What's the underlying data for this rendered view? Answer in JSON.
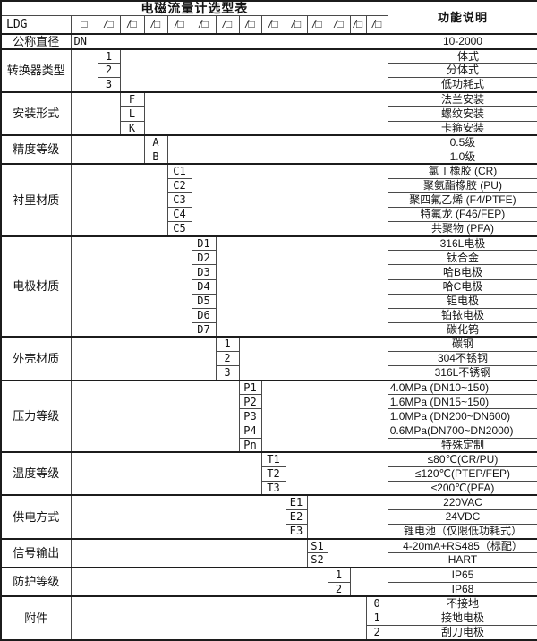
{
  "title": "电磁流量计选型表",
  "desc_header": "功能说明",
  "model_row": {
    "model": "LDG",
    "first_box": "□",
    "box": "/□",
    "box_count": 13
  },
  "dn_row": {
    "label": "公称直径",
    "code": "DN",
    "desc": "10-2000"
  },
  "total_code_columns": 13,
  "sections": [
    {
      "label": "转换器类型",
      "col": 1,
      "options": [
        {
          "code": "1",
          "desc": "一体式"
        },
        {
          "code": "2",
          "desc": "分体式"
        },
        {
          "code": "3",
          "desc": "低功耗式"
        }
      ]
    },
    {
      "label": "安装形式",
      "col": 2,
      "options": [
        {
          "code": "F",
          "desc": "法兰安装"
        },
        {
          "code": "L",
          "desc": "螺纹安装"
        },
        {
          "code": "K",
          "desc": "卡箍安装"
        }
      ]
    },
    {
      "label": "精度等级",
      "col": 3,
      "options": [
        {
          "code": "A",
          "desc": "0.5级"
        },
        {
          "code": "B",
          "desc": "1.0级"
        }
      ]
    },
    {
      "label": "衬里材质",
      "col": 4,
      "options": [
        {
          "code": "C1",
          "desc": "氯丁橡胶 (CR)"
        },
        {
          "code": "C2",
          "desc": "聚氨酯橡胶 (PU)"
        },
        {
          "code": "C3",
          "desc": "聚四氟乙烯 (F4/PTFE)"
        },
        {
          "code": "C4",
          "desc": "特氟龙 (F46/FEP)"
        },
        {
          "code": "C5",
          "desc": "共聚物 (PFA)"
        }
      ]
    },
    {
      "label": "电极材质",
      "col": 5,
      "options": [
        {
          "code": "D1",
          "desc": "316L电极"
        },
        {
          "code": "D2",
          "desc": "钛合金"
        },
        {
          "code": "D3",
          "desc": "哈B电极"
        },
        {
          "code": "D4",
          "desc": "哈C电极"
        },
        {
          "code": "D5",
          "desc": "钽电极"
        },
        {
          "code": "D6",
          "desc": "铂铱电极"
        },
        {
          "code": "D7",
          "desc": "碳化钨"
        }
      ]
    },
    {
      "label": "外壳材质",
      "col": 6,
      "options": [
        {
          "code": "1",
          "desc": "碳钢"
        },
        {
          "code": "2",
          "desc": "304不锈钢"
        },
        {
          "code": "3",
          "desc": "316L不锈钢"
        }
      ]
    },
    {
      "label": "压力等级",
      "col": 7,
      "options": [
        {
          "code": "P1",
          "desc": "4.0MPa (DN10~150)",
          "align": "left"
        },
        {
          "code": "P2",
          "desc": "1.6MPa (DN15~150)",
          "align": "left"
        },
        {
          "code": "P3",
          "desc": "1.0MPa (DN200~DN600)",
          "align": "left"
        },
        {
          "code": "P4",
          "desc": "0.6MPa(DN700~DN2000)",
          "align": "left"
        },
        {
          "code": "Pn",
          "desc": "特殊定制"
        }
      ]
    },
    {
      "label": "温度等级",
      "col": 8,
      "options": [
        {
          "code": "T1",
          "desc": "≤80℃(CR/PU)"
        },
        {
          "code": "T2",
          "desc": "≤120℃(PTEP/FEP)"
        },
        {
          "code": "T3",
          "desc": "≤200℃(PFA)"
        }
      ]
    },
    {
      "label": "供电方式",
      "col": 9,
      "options": [
        {
          "code": "E1",
          "desc": "220VAC"
        },
        {
          "code": "E2",
          "desc": "24VDC"
        },
        {
          "code": "E3",
          "desc": "锂电池（仅限低功耗式）"
        }
      ]
    },
    {
      "label": "信号输出",
      "col": 10,
      "options": [
        {
          "code": "S1",
          "desc": "4-20mA+RS485（标配）"
        },
        {
          "code": "S2",
          "desc": "HART"
        }
      ]
    },
    {
      "label": "防护等级",
      "col": 11,
      "options": [
        {
          "code": "1",
          "desc": "IP65"
        },
        {
          "code": "2",
          "desc": "IP68"
        }
      ]
    },
    {
      "label": "附件",
      "col": 13,
      "options": [
        {
          "code": "0",
          "desc": "不接地"
        },
        {
          "code": "1",
          "desc": "接地电极"
        },
        {
          "code": "2",
          "desc": "刮刀电极"
        }
      ]
    }
  ]
}
